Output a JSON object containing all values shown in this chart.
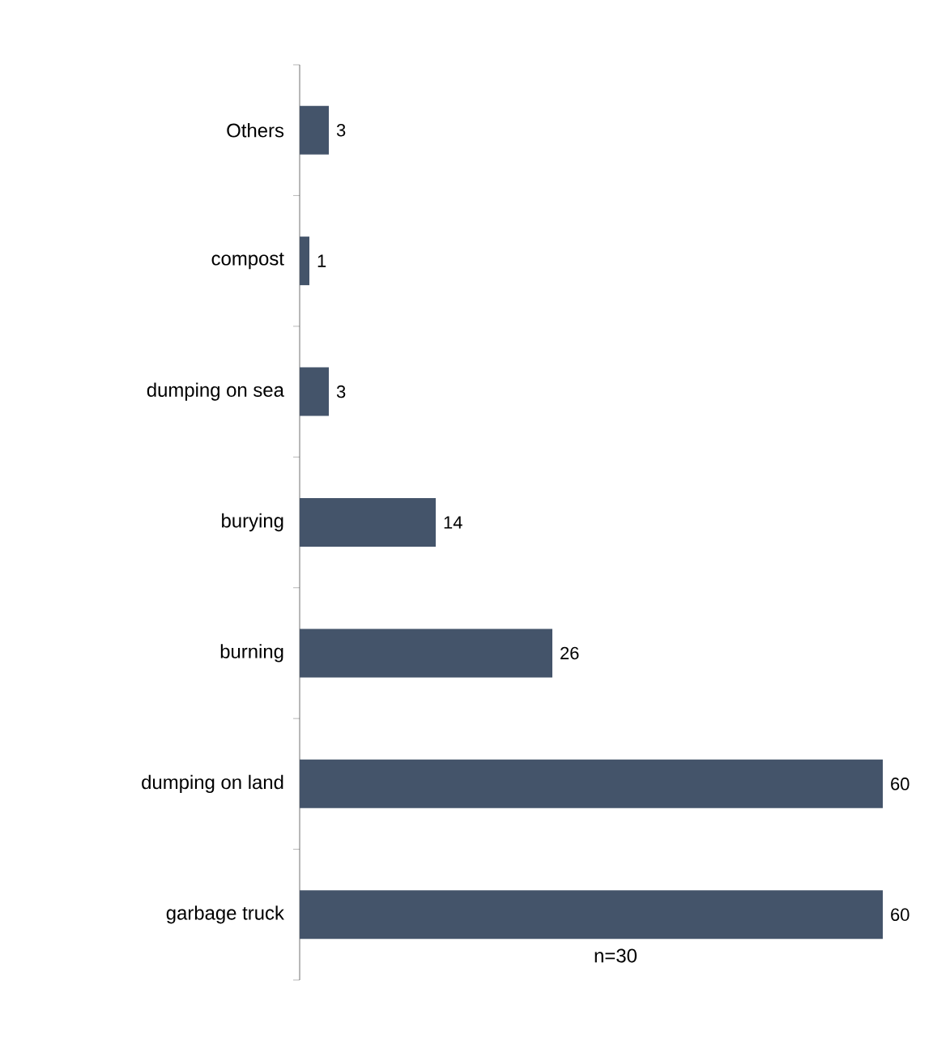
{
  "chart_data": {
    "type": "bar",
    "orientation": "horizontal",
    "categories": [
      "Others",
      "compost",
      "dumping on sea",
      "burying",
      "burning",
      "dumping on land",
      "garbage truck"
    ],
    "values": [
      3,
      1,
      3,
      14,
      26,
      60,
      60
    ],
    "color": "#44546a",
    "data_labels": true,
    "annotations": [
      "n=30"
    ]
  }
}
